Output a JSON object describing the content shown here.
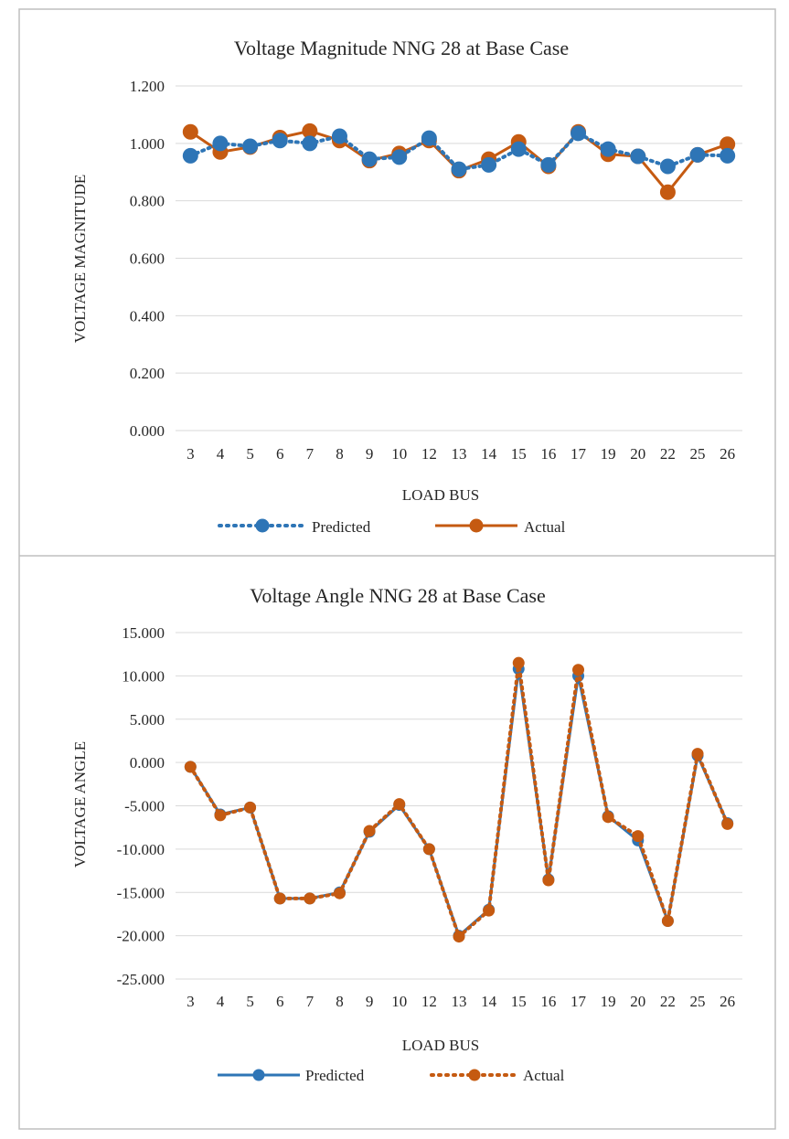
{
  "chart_data": [
    {
      "type": "line",
      "title": "Voltage Magnitude  NNG 28 at Base Case",
      "xlabel": "LOAD BUS",
      "ylabel": "VOLTAGE MAGNITUDE",
      "categories": [
        "3",
        "4",
        "5",
        "6",
        "7",
        "8",
        "9",
        "10",
        "12",
        "13",
        "14",
        "15",
        "16",
        "17",
        "19",
        "20",
        "22",
        "25",
        "26"
      ],
      "ylim": [
        0,
        1.2
      ],
      "yticks": [
        "0.000",
        "0.200",
        "0.400",
        "0.600",
        "0.800",
        "1.000",
        "1.200"
      ],
      "grid": true,
      "legend_position": "bottom",
      "series": [
        {
          "name": "Predicted",
          "style": "dotted",
          "color": "#2e75b6",
          "values": [
            0.957,
            1.0,
            0.99,
            1.01,
            1.0,
            1.025,
            0.945,
            0.952,
            1.018,
            0.91,
            0.925,
            0.98,
            0.925,
            1.035,
            0.98,
            0.955,
            0.92,
            0.96,
            0.957
          ]
        },
        {
          "name": "Actual",
          "style": "solid",
          "color": "#c55a11",
          "values": [
            1.04,
            0.97,
            0.987,
            1.02,
            1.043,
            1.01,
            0.94,
            0.965,
            1.01,
            0.905,
            0.945,
            1.005,
            0.92,
            1.04,
            0.962,
            0.955,
            0.83,
            0.96,
            0.997
          ]
        }
      ]
    },
    {
      "type": "line",
      "title": "Voltage Angle  NNG 28 at Base Case",
      "xlabel": "LOAD BUS",
      "ylabel": "VOLTAGE  ANGLE",
      "categories": [
        "3",
        "4",
        "5",
        "6",
        "7",
        "8",
        "9",
        "10",
        "12",
        "13",
        "14",
        "15",
        "16",
        "17",
        "19",
        "20",
        "22",
        "25",
        "26"
      ],
      "ylim": [
        -25,
        15
      ],
      "yticks": [
        "-25.000",
        "-20.000",
        "-15.000",
        "-10.000",
        "-5.000",
        "0.000",
        "5.000",
        "10.000",
        "15.000"
      ],
      "grid": true,
      "legend_position": "bottom",
      "series": [
        {
          "name": "Predicted",
          "style": "solid",
          "color": "#2e75b6",
          "values": [
            -0.5,
            -6.0,
            -5.2,
            -15.7,
            -15.7,
            -15.0,
            -8.0,
            -4.9,
            -10.0,
            -20.0,
            -17.0,
            10.8,
            -13.5,
            10.0,
            -6.2,
            -9.0,
            -18.3,
            0.8,
            -7.0
          ]
        },
        {
          "name": "Actual",
          "style": "dotted",
          "color": "#c55a11",
          "values": [
            -0.5,
            -6.1,
            -5.2,
            -15.7,
            -15.7,
            -15.1,
            -7.9,
            -4.8,
            -10.0,
            -20.1,
            -17.1,
            11.5,
            -13.6,
            10.7,
            -6.3,
            -8.5,
            -18.3,
            1.0,
            -7.1
          ]
        }
      ]
    }
  ]
}
